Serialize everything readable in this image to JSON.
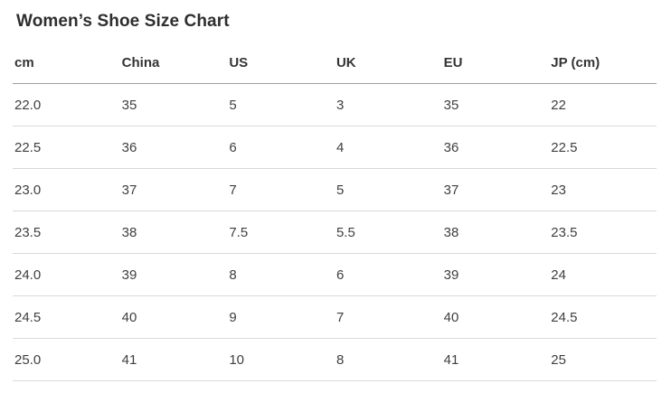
{
  "page": {
    "title": "Women’s Shoe Size Chart"
  },
  "table": {
    "columns": [
      "cm",
      "China",
      "US",
      "UK",
      "EU",
      "JP (cm)"
    ],
    "rows": [
      [
        "22.0",
        "35",
        "5",
        "3",
        "35",
        "22"
      ],
      [
        "22.5",
        "36",
        "6",
        "4",
        "36",
        "22.5"
      ],
      [
        "23.0",
        "37",
        "7",
        "5",
        "37",
        "23"
      ],
      [
        "23.5",
        "38",
        "7.5",
        "5.5",
        "38",
        "23.5"
      ],
      [
        "24.0",
        "39",
        "8",
        "6",
        "39",
        "24"
      ],
      [
        "24.5",
        "40",
        "9",
        "7",
        "40",
        "24.5"
      ],
      [
        "25.0",
        "41",
        "10",
        "8",
        "41",
        "25"
      ]
    ]
  },
  "colors": {
    "background": "#ffffff",
    "title_text": "#2e2e2e",
    "header_text": "#333333",
    "cell_text": "#3f3f3f",
    "header_border": "#9e9e9e",
    "row_border": "#d9d9d9"
  }
}
